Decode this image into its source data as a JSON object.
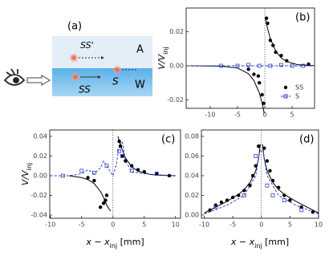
{
  "schematic": {
    "label": "(a)",
    "upper_marker": "SS'",
    "air": "A",
    "surface_marker": "S",
    "lower_marker": "SS",
    "water": "W"
  },
  "chart_data": [
    {
      "type": "scatter",
      "panel": "(b)",
      "ylabel": [
        "V/V",
        "inj"
      ],
      "xlim": [
        -14.4,
        9.1
      ],
      "ylim": [
        -0.025,
        0.034
      ],
      "xticks": [
        -10,
        -5,
        0,
        5
      ],
      "yticks": [
        -0.02,
        {
          "value": 0,
          "label": "0.00"
        },
        0.02
      ],
      "legend": "lower right",
      "series": [
        {
          "name": "SS",
          "color": "#000000",
          "marker": "circle",
          "x": [
            0.3,
            0.5,
            1,
            1.5,
            2,
            3,
            4,
            8,
            -0.2,
            -0.5,
            -1,
            -1.2,
            -2,
            -3
          ],
          "values": [
            0.028,
            0.025,
            0.015,
            0.012,
            0.008,
            0.006,
            0.003,
            0.001,
            -0.022,
            -0.017,
            -0.01,
            -0.006,
            -0.005,
            -0.002
          ]
        },
        {
          "name": "S",
          "color": "#3344cc",
          "marker": "square",
          "x": [
            -8,
            -5,
            -3,
            -1,
            1,
            3,
            5,
            7
          ],
          "values": [
            0,
            0,
            0.0005,
            0,
            0,
            0.0005,
            0,
            0
          ]
        }
      ],
      "fits": [
        {
          "color": "#000000",
          "dash": "none",
          "x": [
            0.1,
            0.5,
            1,
            2,
            3,
            4,
            6,
            9
          ],
          "values": [
            0.028,
            0.022,
            0.016,
            0.0086,
            0.0046,
            0.0025,
            0.0007,
            0.0001
          ]
        },
        {
          "color": "#000000",
          "dash": "none",
          "x": [
            -0.1,
            -0.5,
            -1,
            -2,
            -3,
            -5,
            -8,
            -14
          ],
          "values": [
            -0.028,
            -0.022,
            -0.016,
            -0.0086,
            -0.0046,
            -0.0013,
            -0.0002,
            0
          ]
        },
        {
          "color": "#3344cc",
          "dash": "4 2",
          "x": [
            -14,
            9
          ],
          "values": [
            0,
            0
          ]
        }
      ]
    },
    {
      "type": "scatter",
      "panel": "(c)",
      "ylabel": [
        "V/V",
        "inj"
      ],
      "xlabel": [
        "x − x",
        "inj",
        " [mm]"
      ],
      "xlim": [
        -10.1,
        10.8
      ],
      "ylim": [
        -0.0433,
        0.0465
      ],
      "xticks": [
        -10,
        -5,
        0,
        5,
        10
      ],
      "yticks": [
        -0.04,
        -0.02,
        {
          "value": 0,
          "label": "0.00"
        },
        0.02,
        0.04
      ],
      "series": [
        {
          "color": "#000000",
          "marker": "circle",
          "x": [
            1,
            1.2,
            1.5,
            2,
            3,
            4,
            5,
            7,
            9,
            -1,
            -1.2,
            -1.5,
            -2,
            -3,
            -4
          ],
          "values": [
            0.035,
            0.03,
            0.02,
            0.015,
            0.01,
            0.006,
            0.004,
            0.002,
            0,
            -0.02,
            -0.025,
            -0.028,
            -0.032,
            -0.005,
            -0.002
          ]
        },
        {
          "color": "#3344cc",
          "marker": "square",
          "x": [
            -8,
            -5,
            -3,
            -1,
            1,
            1.5,
            3,
            7
          ],
          "values": [
            0,
            0.005,
            0.003,
            0.01,
            0.025,
            0.02,
            0.005,
            0.002
          ]
        }
      ],
      "fits": [
        {
          "color": "#000000",
          "dash": "none",
          "x": [
            0.8,
            1.2,
            2,
            3,
            4,
            6,
            8,
            10
          ],
          "values": [
            0.04,
            0.031,
            0.018,
            0.009,
            0.0045,
            0.0012,
            0.0003,
            0
          ]
        },
        {
          "color": "#000000",
          "dash": "none",
          "x": [
            -0.4,
            -1,
            -1.5,
            -2,
            -3,
            -4,
            -5,
            -7
          ],
          "values": [
            -0.036,
            -0.03,
            -0.022,
            -0.016,
            -0.008,
            -0.004,
            -0.002,
            0
          ]
        },
        {
          "color": "#3344cc",
          "dash": "3 2",
          "x": [
            -10,
            -7,
            -5,
            -4,
            -3,
            -2,
            -1.5,
            -1,
            0,
            0.5,
            1,
            1.5,
            2,
            3,
            5,
            7,
            10
          ],
          "values": [
            0,
            0,
            0.002,
            0.006,
            0.002,
            0.008,
            0.015,
            0.01,
            0,
            0.01,
            0.03,
            0.035,
            0.015,
            0.004,
            0.002,
            0.001,
            0
          ]
        }
      ]
    },
    {
      "type": "scatter",
      "panel": "(d)",
      "xlabel": [
        "x − x",
        "inj",
        " [mm]"
      ],
      "xlim": [
        -10.5,
        10
      ],
      "ylim": [
        -0.0033,
        0.0865
      ],
      "xticks": [
        -10,
        -5,
        0,
        5,
        10
      ],
      "yticks": [
        {
          "value": 0,
          "label": "0.00"
        },
        0.02,
        0.04,
        0.06,
        0.08
      ],
      "series": [
        {
          "color": "#000000",
          "marker": "circle",
          "x": [
            -9,
            -8,
            -7,
            -6,
            -5,
            -4,
            -3,
            -2,
            -1.5,
            -1,
            -0.5,
            0.5,
            1,
            1.5,
            2,
            3,
            4,
            5,
            7,
            9
          ],
          "values": [
            0.005,
            0.01,
            0.013,
            0.015,
            0.018,
            0.02,
            0.025,
            0.03,
            0.04,
            0.05,
            0.07,
            0.068,
            0.055,
            0.045,
            0.035,
            0.028,
            0.02,
            0.015,
            0.008,
            0.003
          ]
        },
        {
          "color": "#3344cc",
          "marker": "square",
          "x": [
            -8,
            -3,
            -1,
            1,
            2,
            4,
            7
          ],
          "values": [
            0.008,
            0.02,
            0.06,
            0.03,
            0.02,
            0.015,
            0.005
          ]
        }
      ],
      "fits": [
        {
          "color": "#000000",
          "dash": "none",
          "x": [
            -10,
            -8,
            -6,
            -4,
            -3,
            -2,
            -1,
            -0.5,
            -0.2
          ],
          "values": [
            0.002,
            0.008,
            0.014,
            0.021,
            0.026,
            0.033,
            0.045,
            0.057,
            0.072
          ]
        },
        {
          "color": "#000000",
          "dash": "none",
          "x": [
            0.2,
            0.5,
            1,
            2,
            3,
            4,
            6,
            8,
            10
          ],
          "values": [
            0.072,
            0.057,
            0.045,
            0.033,
            0.026,
            0.021,
            0.014,
            0.008,
            0.002
          ]
        },
        {
          "color": "#3344cc",
          "dash": "3 2",
          "x": [
            -10,
            -6,
            -3,
            -1,
            -0.3,
            0.3,
            1,
            3,
            6,
            10
          ],
          "values": [
            0.001,
            0.01,
            0.02,
            0.04,
            0.065,
            0.065,
            0.04,
            0.02,
            0.01,
            0.001
          ]
        }
      ]
    }
  ]
}
